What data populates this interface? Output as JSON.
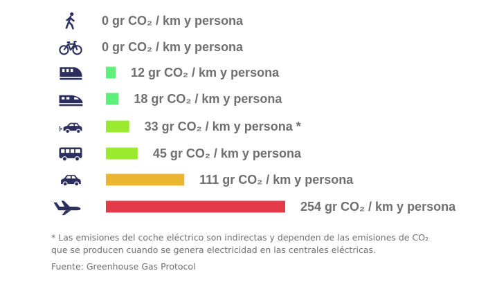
{
  "chart_data": {
    "type": "bar",
    "orientation": "horizontal",
    "unit": "gr CO₂ / km y persona",
    "categories": [
      "walking",
      "bicycle",
      "train",
      "high-speed-train",
      "electric-car",
      "bus",
      "car",
      "airplane"
    ],
    "values": [
      0,
      0,
      12,
      18,
      33,
      45,
      111,
      254
    ],
    "labels": [
      "0 gr CO₂ / km y persona",
      "0 gr CO₂ / km y persona",
      "12 gr CO₂ / km y persona",
      "18 gr CO₂ / km y persona",
      "33 gr CO₂ / km y persona *",
      "45 gr CO₂ / km y persona",
      "111 gr CO₂ / km y persona",
      "254 gr CO₂ / km y persona"
    ],
    "icons": [
      "walking-person-icon",
      "bicycle-icon",
      "train-icon",
      "high-speed-train-icon",
      "electric-car-icon",
      "bus-icon",
      "car-icon",
      "airplane-icon"
    ],
    "colors": [
      "#5ef07a",
      "#5ef07a",
      "#5ef07a",
      "#5ef07a",
      "#9bea2e",
      "#9bea2e",
      "#eab52f",
      "#e33b4a"
    ],
    "title": "",
    "xlabel": "",
    "ylabel": "",
    "xlim": [
      0,
      254
    ],
    "grid": false,
    "legend": "none"
  },
  "footnote_line1": "* Las emisiones del coche eléctrico son indirectas y dependen de las emisiones de CO₂",
  "footnote_line2": "que se producen cuando se genera electricidad en las centrales eléctricas.",
  "source": "Fuente: Greenhouse Gas Protocol",
  "icon_color": "#2c2f5e"
}
